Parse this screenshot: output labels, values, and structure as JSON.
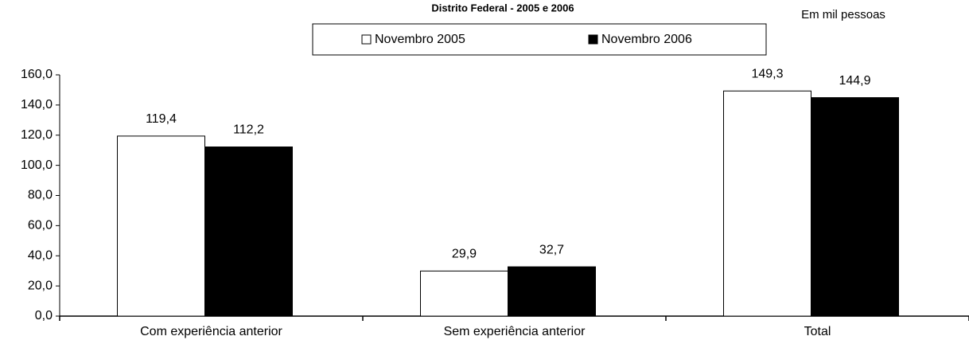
{
  "chart_data": {
    "type": "bar",
    "title": "Distrito Federal - 2005 e 2006",
    "annotation": "Em mil pessoas",
    "categories": [
      "Com experiência anterior",
      "Sem experiência anterior",
      "Total"
    ],
    "series": [
      {
        "name": "Novembro 2005",
        "color": "#ffffff",
        "values": [
          119.4,
          29.9,
          149.3
        ],
        "value_labels": [
          "119,4",
          "29,9",
          "149,3"
        ]
      },
      {
        "name": "Novembro 2006",
        "color": "#000000",
        "values": [
          112.2,
          32.7,
          144.9
        ],
        "value_labels": [
          "112,2",
          "32,7",
          "144,9"
        ]
      }
    ],
    "ylim": [
      0,
      160
    ],
    "yticks": [
      {
        "value": 0,
        "label": "0,0"
      },
      {
        "value": 20,
        "label": "20,0"
      },
      {
        "value": 40,
        "label": "40,0"
      },
      {
        "value": 60,
        "label": "60,0"
      },
      {
        "value": 80,
        "label": "80,0"
      },
      {
        "value": 100,
        "label": "100,0"
      },
      {
        "value": 120,
        "label": "120,0"
      },
      {
        "value": 140,
        "label": "140,0"
      },
      {
        "value": 160,
        "label": "160,0"
      }
    ],
    "grid": false
  }
}
